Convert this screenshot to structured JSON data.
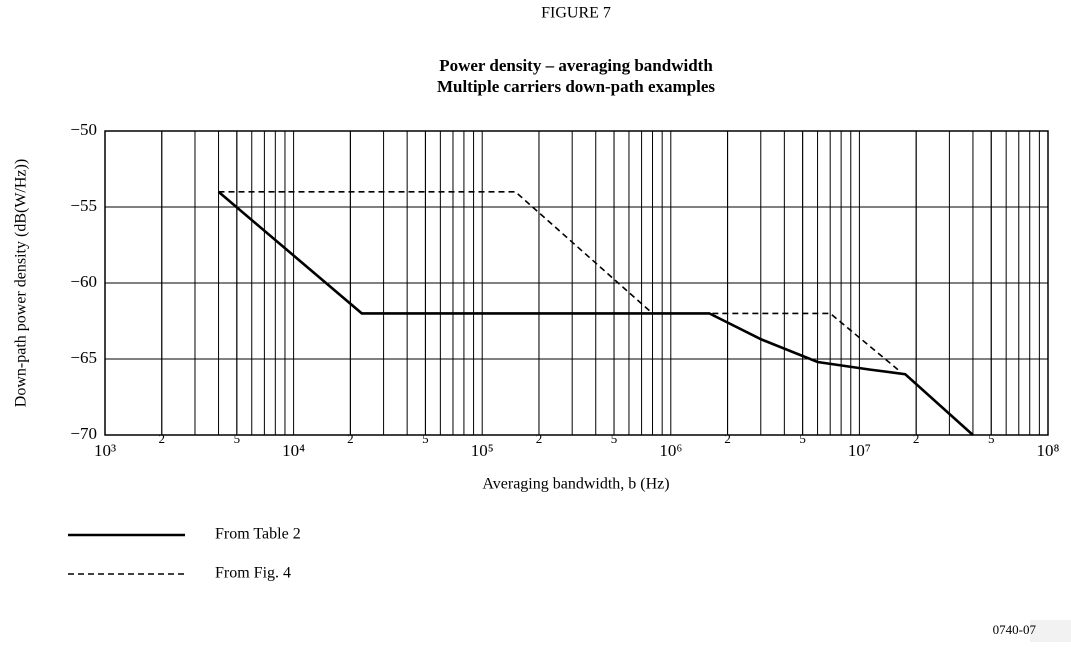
{
  "chart_data": {
    "type": "line",
    "figure_label": "FIGURE 7",
    "title": "Power density – averaging bandwidth",
    "subtitle": "Multiple carriers down-path examples",
    "x_label": "Averaging bandwidth, b (Hz)",
    "y_label": "Down-path power density (dB(W/Hz))",
    "code": "0740-07",
    "xscale": "log",
    "minor_grid": true,
    "xlim": [
      1000,
      100000000
    ],
    "ylim": [
      -70,
      -50
    ],
    "xticks": [
      {
        "value": 1000,
        "label": "10³"
      },
      {
        "value": 2000,
        "label": "2"
      },
      {
        "value": 5000,
        "label": "5"
      },
      {
        "value": 10000,
        "label": "10⁴"
      },
      {
        "value": 20000,
        "label": "2"
      },
      {
        "value": 50000,
        "label": "5"
      },
      {
        "value": 100000,
        "label": "10⁵"
      },
      {
        "value": 200000,
        "label": "2"
      },
      {
        "value": 500000,
        "label": "5"
      },
      {
        "value": 1000000,
        "label": "10⁶"
      },
      {
        "value": 2000000,
        "label": "2"
      },
      {
        "value": 5000000,
        "label": "5"
      },
      {
        "value": 10000000,
        "label": "10⁷"
      },
      {
        "value": 20000000,
        "label": "2"
      },
      {
        "value": 50000000,
        "label": "5"
      },
      {
        "value": 100000000,
        "label": "10⁸"
      }
    ],
    "yticks": [
      {
        "value": -50,
        "label": "−50"
      },
      {
        "value": -55,
        "label": "−55"
      },
      {
        "value": -60,
        "label": "−60"
      },
      {
        "value": -65,
        "label": "−65"
      },
      {
        "value": -70,
        "label": "−70"
      }
    ],
    "series": [
      {
        "name": "From Table 2",
        "color": "#000000",
        "style": "solid",
        "x": [
          4000,
          23000,
          1600000,
          3000000,
          6000000,
          11400000,
          17500000,
          40000000
        ],
        "values": [
          -54,
          -62,
          -62,
          -63.7,
          -65.2,
          -65.7,
          -66,
          -70
        ]
      },
      {
        "name": "From Fig. 4",
        "color": "#000000",
        "style": "dashed",
        "x": [
          4000,
          150000,
          800000,
          7000000,
          16000000
        ],
        "values": [
          -54,
          -54,
          -62,
          -62,
          -65.7
        ]
      }
    ]
  }
}
